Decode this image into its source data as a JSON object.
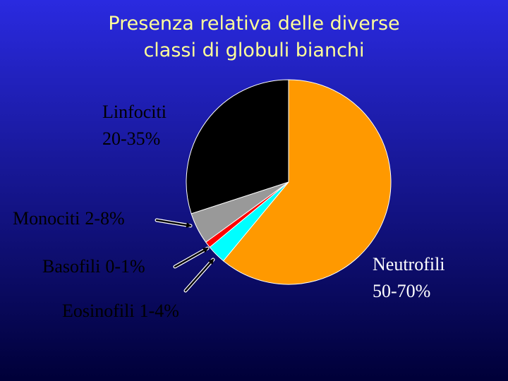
{
  "chart_data": {
    "type": "pie",
    "title": [
      "Presenza relativa delle diverse",
      "classi di globuli bianchi"
    ],
    "categories": [
      "Neutrofili",
      "Eosinofili",
      "Basofili",
      "Monociti",
      "Linfociti"
    ],
    "values": [
      61,
      3,
      1,
      5,
      30
    ],
    "value_labels": [
      "50-70%",
      "1-4%",
      "0-1%",
      "2-8%",
      "20-35%"
    ],
    "colors": [
      "#ff9900",
      "#00ffff",
      "#ff0000",
      "#999999",
      "#000000"
    ]
  }
}
